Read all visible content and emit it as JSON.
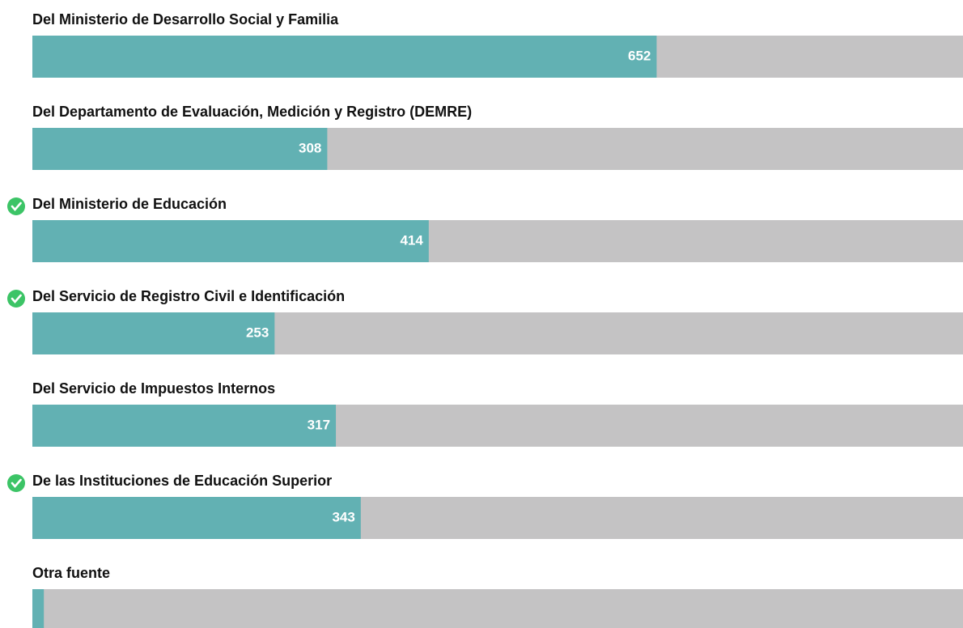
{
  "chart_data": {
    "type": "bar",
    "categories": [
      "Del Ministerio de Desarrollo Social y Familia",
      "Del Departamento de Evaluación, Medición y Registro (DEMRE)",
      "Del Ministerio de Educación",
      "Del Servicio de Registro Civil e Identificación",
      "Del Servicio de Impuestos Internos",
      "De las Instituciones de Educación Superior",
      "Otra fuente"
    ],
    "values": [
      652,
      308,
      414,
      253,
      317,
      343,
      12
    ],
    "checked": [
      false,
      false,
      true,
      true,
      false,
      true,
      false
    ],
    "color": "#62b1b3",
    "track_color": "#c4c3c4",
    "check_color": "#3cc466",
    "xlim": [
      0,
      972
    ]
  }
}
